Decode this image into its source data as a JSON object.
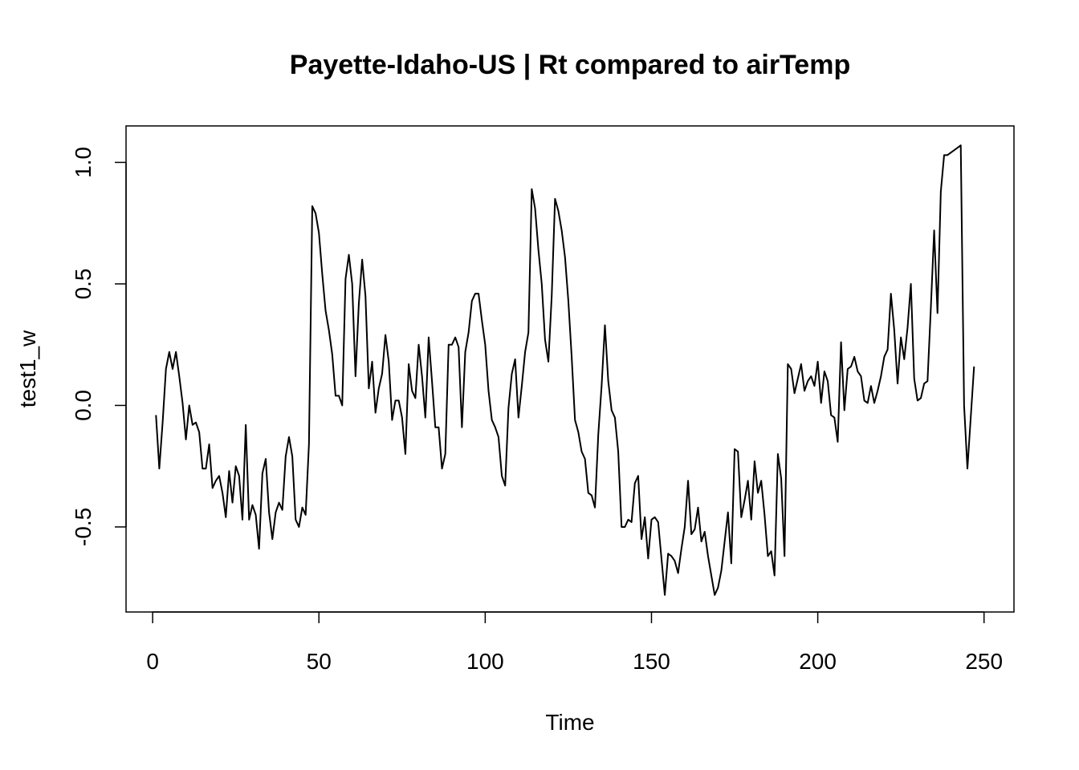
{
  "chart_data": {
    "type": "line",
    "title": "Payette-Idaho-US | Rt compared to airTemp",
    "xlabel": "Time",
    "ylabel": "test1_w",
    "xlim": [
      -8,
      259
    ],
    "ylim": [
      -0.85,
      1.15
    ],
    "x_ticks": [
      0,
      50,
      100,
      150,
      200,
      250
    ],
    "x_tick_labels": [
      "0",
      "50",
      "100",
      "150",
      "200",
      "250"
    ],
    "y_ticks": [
      -0.5,
      0.0,
      0.5,
      1.0
    ],
    "y_tick_labels": [
      "-0.5",
      "0.0",
      "0.5",
      "1.0"
    ],
    "grid": false,
    "line_color": "#000000",
    "series": [
      {
        "x_start": 1,
        "values": [
          -0.04,
          -0.26,
          -0.07,
          0.15,
          0.22,
          0.15,
          0.22,
          0.12,
          0.01,
          -0.14,
          0.0,
          -0.08,
          -0.07,
          -0.11,
          -0.26,
          -0.26,
          -0.16,
          -0.34,
          -0.31,
          -0.29,
          -0.36,
          -0.46,
          -0.27,
          -0.4,
          -0.25,
          -0.29,
          -0.47,
          -0.08,
          -0.47,
          -0.41,
          -0.45,
          -0.59,
          -0.28,
          -0.22,
          -0.44,
          -0.55,
          -0.44,
          -0.4,
          -0.43,
          -0.21,
          -0.13,
          -0.21,
          -0.47,
          -0.5,
          -0.42,
          -0.45,
          -0.16,
          0.82,
          0.79,
          0.71,
          0.54,
          0.39,
          0.31,
          0.21,
          0.04,
          0.04,
          0.0,
          0.52,
          0.62,
          0.5,
          0.12,
          0.42,
          0.6,
          0.45,
          0.07,
          0.18,
          -0.03,
          0.07,
          0.13,
          0.29,
          0.18,
          -0.06,
          0.02,
          0.02,
          -0.05,
          -0.2,
          0.17,
          0.06,
          0.03,
          0.25,
          0.12,
          -0.05,
          0.28,
          0.1,
          -0.09,
          -0.09,
          -0.26,
          -0.2,
          0.25,
          0.25,
          0.28,
          0.24,
          -0.09,
          0.22,
          0.3,
          0.43,
          0.46,
          0.46,
          0.35,
          0.25,
          0.06,
          -0.06,
          -0.09,
          -0.13,
          -0.29,
          -0.33,
          -0.01,
          0.13,
          0.19,
          -0.05,
          0.08,
          0.22,
          0.3,
          0.89,
          0.81,
          0.64,
          0.5,
          0.27,
          0.18,
          0.45,
          0.85,
          0.8,
          0.72,
          0.61,
          0.43,
          0.2,
          -0.06,
          -0.11,
          -0.19,
          -0.22,
          -0.36,
          -0.37,
          -0.42,
          -0.12,
          0.08,
          0.33,
          0.1,
          -0.02,
          -0.05,
          -0.19,
          -0.5,
          -0.5,
          -0.47,
          -0.48,
          -0.32,
          -0.29,
          -0.55,
          -0.46,
          -0.63,
          -0.47,
          -0.46,
          -0.48,
          -0.63,
          -0.78,
          -0.61,
          -0.62,
          -0.64,
          -0.69,
          -0.59,
          -0.5,
          -0.31,
          -0.53,
          -0.51,
          -0.42,
          -0.56,
          -0.52,
          -0.62,
          -0.7,
          -0.78,
          -0.75,
          -0.68,
          -0.56,
          -0.44,
          -0.65,
          -0.18,
          -0.19,
          -0.46,
          -0.39,
          -0.31,
          -0.47,
          -0.23,
          -0.36,
          -0.31,
          -0.45,
          -0.62,
          -0.6,
          -0.7,
          -0.2,
          -0.3,
          -0.62,
          0.17,
          0.15,
          0.05,
          0.11,
          0.17,
          0.06,
          0.1,
          0.12,
          0.08,
          0.18,
          0.01,
          0.14,
          0.1,
          -0.04,
          -0.05,
          -0.15,
          0.26,
          -0.02,
          0.15,
          0.16,
          0.2,
          0.14,
          0.12,
          0.02,
          0.01,
          0.08,
          0.01,
          0.06,
          0.12,
          0.2,
          0.23,
          0.46,
          0.31,
          0.09,
          0.28,
          0.19,
          0.32,
          0.5,
          0.11,
          0.02,
          0.03,
          0.09,
          0.1,
          0.4,
          0.72,
          0.38,
          0.88,
          1.03,
          1.03,
          1.04,
          1.05,
          1.06,
          1.07,
          0.0,
          -0.26,
          -0.05,
          0.16
        ]
      }
    ]
  }
}
